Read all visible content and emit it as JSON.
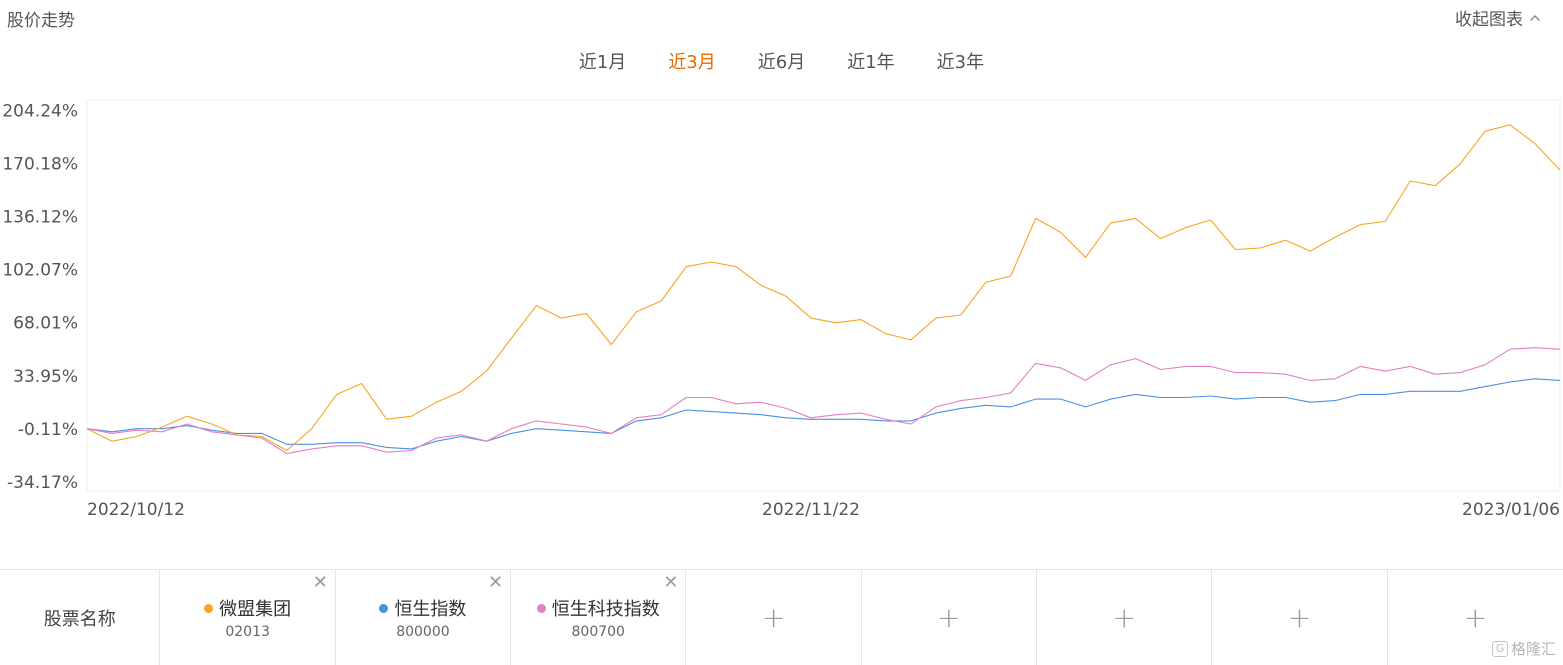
{
  "header": {
    "title": "股价走势",
    "collapse_label": "收起图表"
  },
  "tabs": [
    {
      "label": "近1月",
      "active": false
    },
    {
      "label": "近3月",
      "active": true
    },
    {
      "label": "近6月",
      "active": false
    },
    {
      "label": "近1年",
      "active": false
    },
    {
      "label": "近3年",
      "active": false
    }
  ],
  "chart_data": {
    "type": "line",
    "y_ticks": [
      "204.24%",
      "170.18%",
      "136.12%",
      "102.07%",
      "68.01%",
      "33.95%",
      "-0.11%",
      "-34.17%"
    ],
    "y_tick_values": [
      204.24,
      170.18,
      136.12,
      102.07,
      68.01,
      33.95,
      -0.11,
      -34.17
    ],
    "ylim": [
      -40,
      211
    ],
    "x_tick_labels": [
      "2022/10/12",
      "2022/11/22",
      "2023/01/06"
    ],
    "x_tick_index": [
      0,
      29,
      59
    ],
    "grid": false,
    "series": [
      {
        "name": "微盟集团",
        "color": "#f5a623",
        "values": [
          0,
          -8,
          -5,
          1,
          8,
          3,
          -4,
          -5,
          -14,
          0,
          22,
          29,
          6,
          8,
          17,
          24,
          37,
          58,
          79,
          71,
          74,
          54,
          75,
          82,
          104,
          107,
          104,
          92,
          85,
          71,
          68,
          70,
          61,
          57,
          71,
          73,
          94,
          98,
          135,
          126,
          110,
          132,
          135,
          122,
          129,
          134,
          115,
          116,
          121,
          114,
          123,
          131,
          133,
          159,
          156,
          170,
          191,
          195,
          183,
          166
        ]
      },
      {
        "name": "恒生指数",
        "color": "#4a90e2",
        "values": [
          0,
          -2,
          0,
          0,
          2,
          -1,
          -3,
          -3,
          -10,
          -10,
          -9,
          -9,
          -12,
          -13,
          -8,
          -5,
          -8,
          -3,
          0,
          -1,
          -2,
          -3,
          5,
          7,
          12,
          11,
          10,
          9,
          7,
          6,
          6,
          6,
          5,
          5,
          10,
          13,
          15,
          14,
          19,
          19,
          14,
          19,
          22,
          20,
          20,
          21,
          19,
          20,
          20,
          17,
          18,
          22,
          22,
          24,
          24,
          24,
          27,
          30,
          32,
          31
        ]
      },
      {
        "name": "恒生科技指数",
        "color": "#e37fc4",
        "values": [
          0,
          -3,
          -1,
          -2,
          3,
          -2,
          -4,
          -6,
          -16,
          -13,
          -11,
          -11,
          -15,
          -14,
          -6,
          -4,
          -8,
          0,
          5,
          3,
          1,
          -3,
          7,
          9,
          20,
          20,
          16,
          17,
          13,
          7,
          9,
          10,
          6,
          3,
          14,
          18,
          20,
          23,
          42,
          39,
          31,
          41,
          45,
          38,
          40,
          40,
          36,
          36,
          35,
          31,
          32,
          40,
          37,
          40,
          35,
          36,
          41,
          51,
          52,
          51
        ]
      }
    ]
  },
  "table": {
    "header_label": "股票名称",
    "stocks": [
      {
        "name": "微盟集团",
        "code": "02013",
        "color": "#f5a623"
      },
      {
        "name": "恒生指数",
        "code": "800000",
        "color": "#4a90e2"
      },
      {
        "name": "恒生科技指数",
        "code": "800700",
        "color": "#e37fc4"
      }
    ],
    "close_glyph": "✕",
    "add_glyph": "+",
    "empty_slots": 5
  },
  "watermark": {
    "icon": "G",
    "text": "格隆汇"
  }
}
